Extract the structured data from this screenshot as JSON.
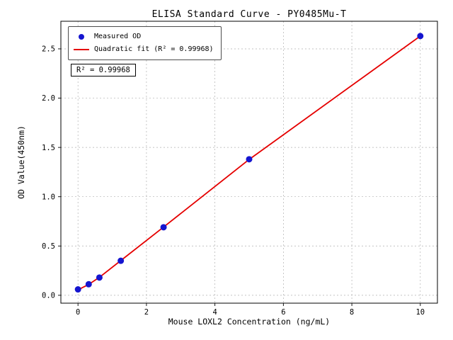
{
  "chart_data": {
    "type": "scatter",
    "title": "ELISA Standard Curve - PY0485Mu-T",
    "xlabel": "Mouse LOXL2 Concentration (ng/mL)",
    "ylabel": "OD Value(450nm)",
    "x": [
      0,
      0.3125,
      0.625,
      1.25,
      2.5,
      5,
      10
    ],
    "series": [
      {
        "name": "Measured OD",
        "kind": "scatter",
        "color": "#1515cf",
        "y": [
          0.06,
          0.112,
          0.18,
          0.35,
          0.69,
          1.38,
          2.63
        ]
      },
      {
        "name": "Quadratic fit (R² = 0.99968)",
        "kind": "line",
        "color": "#e50000",
        "y": [
          0.055,
          0.11,
          0.182,
          0.352,
          0.692,
          1.378,
          2.63
        ]
      }
    ],
    "annotation": "R² = 0.99968",
    "r_squared": 0.99968,
    "xlim": [
      -0.5,
      10.5
    ],
    "ylim": [
      -0.08,
      2.78
    ],
    "xticks": [
      0,
      2,
      4,
      6,
      8,
      10
    ],
    "xtick_labels": [
      "0",
      "2",
      "4",
      "6",
      "8",
      "10"
    ],
    "yticks": [
      0,
      0.5,
      1,
      1.5,
      2,
      2.5
    ],
    "ytick_labels": [
      "0.0",
      "0.5",
      "1.0",
      "1.5",
      "2.0",
      "2.5"
    ],
    "grid": true,
    "legend_position": "upper left"
  }
}
